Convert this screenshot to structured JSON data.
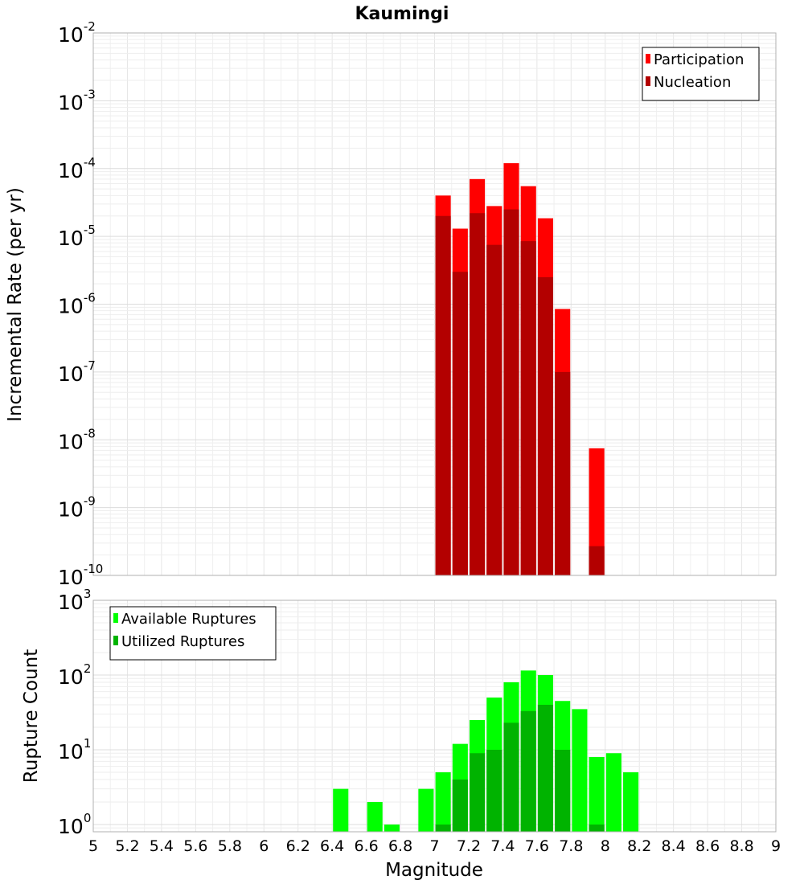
{
  "chart_data": [
    {
      "type": "bar",
      "title": "Kaumingi",
      "xlabel": "",
      "ylabel": "Incremental Rate (per yr)",
      "yscale": "log",
      "xlim": [
        5,
        9
      ],
      "ylim": [
        1e-10,
        0.01
      ],
      "ytick_base": "10",
      "ytick_exponents": [
        "-2",
        "-3",
        "-4",
        "-5",
        "-6",
        "-7",
        "-8",
        "-9",
        "-10"
      ],
      "legend_position": "top-right",
      "grid": true,
      "bar_width": 0.09,
      "series": [
        {
          "name": "Participation",
          "color": "#ff0000",
          "x": [
            7.05,
            7.15,
            7.25,
            7.35,
            7.45,
            7.55,
            7.65,
            7.75,
            7.95
          ],
          "values": [
            4e-05,
            1.3e-05,
            7e-05,
            2.8e-05,
            0.00012,
            5.5e-05,
            1.85e-05,
            8.5e-07,
            7.5e-09
          ]
        },
        {
          "name": "Nucleation",
          "color": "#b30000",
          "x": [
            7.05,
            7.15,
            7.25,
            7.35,
            7.45,
            7.55,
            7.65,
            7.75,
            7.95
          ],
          "values": [
            2e-05,
            3e-06,
            2.2e-05,
            7.5e-06,
            2.5e-05,
            8.5e-06,
            2.5e-06,
            1e-07,
            2.7e-10
          ]
        }
      ]
    },
    {
      "type": "bar",
      "title": "",
      "xlabel": "Magnitude",
      "ylabel": "Rupture Count",
      "yscale": "log",
      "xlim": [
        5,
        9
      ],
      "ylim": [
        0.8,
        1000
      ],
      "ytick_base": "10",
      "ytick_exponents": [
        "3",
        "2",
        "1",
        "0"
      ],
      "xticks": [
        "5",
        "5.2",
        "5.4",
        "5.6",
        "5.8",
        "6",
        "6.2",
        "6.4",
        "6.6",
        "6.8",
        "7",
        "7.2",
        "7.4",
        "7.6",
        "7.8",
        "8",
        "8.2",
        "8.4",
        "8.6",
        "8.8",
        "9"
      ],
      "legend_position": "top-left",
      "grid": true,
      "bar_width": 0.09,
      "series": [
        {
          "name": "Available Ruptures",
          "color": "#00ff00",
          "x": [
            6.45,
            6.65,
            6.75,
            6.95,
            7.05,
            7.15,
            7.25,
            7.35,
            7.45,
            7.55,
            7.65,
            7.75,
            7.85,
            7.95,
            8.05,
            8.15
          ],
          "values": [
            3,
            2,
            1,
            3,
            5,
            12,
            25,
            50,
            80,
            115,
            100,
            45,
            35,
            8,
            9,
            5
          ]
        },
        {
          "name": "Utilized Ruptures",
          "color": "#00b300",
          "x": [
            7.05,
            7.15,
            7.25,
            7.35,
            7.45,
            7.55,
            7.65,
            7.75,
            7.95
          ],
          "values": [
            1,
            4,
            9,
            10,
            23,
            33,
            40,
            10,
            1
          ]
        }
      ]
    }
  ]
}
